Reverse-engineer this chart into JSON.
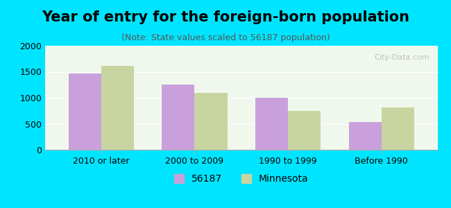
{
  "title": "Year of entry for the foreign-born population",
  "subtitle": "(Note: State values scaled to 56187 population)",
  "categories": [
    "2010 or later",
    "2000 to 2009",
    "1990 to 1999",
    "Before 1990"
  ],
  "values_city": [
    1470,
    1260,
    1000,
    540
  ],
  "values_state": [
    1620,
    1100,
    750,
    820
  ],
  "bar_color_city": "#c9a0dc",
  "bar_color_state": "#c8d5a0",
  "background_outer": "#00e5ff",
  "background_inner": "#f0f8ee",
  "ylim": [
    0,
    2000
  ],
  "yticks": [
    0,
    500,
    1000,
    1500,
    2000
  ],
  "legend_city": "56187",
  "legend_state": "Minnesota",
  "title_fontsize": 15,
  "subtitle_fontsize": 9,
  "tick_fontsize": 9,
  "legend_fontsize": 10
}
